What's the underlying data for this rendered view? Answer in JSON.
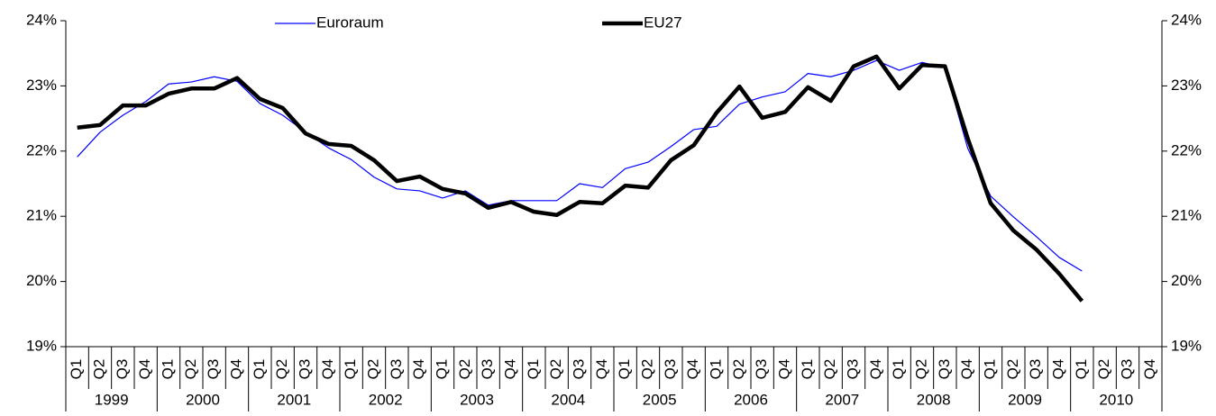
{
  "chart_data": {
    "type": "line",
    "categories": [
      "Q1",
      "Q2",
      "Q3",
      "Q4",
      "Q1",
      "Q2",
      "Q3",
      "Q4",
      "Q1",
      "Q2",
      "Q3",
      "Q4",
      "Q1",
      "Q2",
      "Q3",
      "Q4",
      "Q1",
      "Q2",
      "Q3",
      "Q4",
      "Q1",
      "Q2",
      "Q3",
      "Q4",
      "Q1",
      "Q2",
      "Q3",
      "Q4",
      "Q1",
      "Q2",
      "Q3",
      "Q4",
      "Q1",
      "Q2",
      "Q3",
      "Q4",
      "Q1",
      "Q2",
      "Q3",
      "Q4",
      "Q1",
      "Q2",
      "Q3",
      "Q4",
      "Q1",
      "Q2",
      "Q3",
      "Q4"
    ],
    "groups": [
      "1999",
      "2000",
      "2001",
      "2002",
      "2003",
      "2004",
      "2005",
      "2006",
      "2007",
      "2008",
      "2009",
      "2010"
    ],
    "series": [
      {
        "name": "Euroraum",
        "color": "#0000ff",
        "values": [
          21.91,
          22.29,
          22.55,
          22.76,
          23.03,
          23.06,
          23.14,
          23.07,
          22.73,
          22.55,
          22.29,
          22.05,
          21.87,
          21.6,
          21.42,
          21.39,
          21.28,
          21.39,
          21.17,
          21.24,
          21.24,
          21.24,
          21.5,
          21.44,
          21.73,
          21.83,
          22.07,
          22.33,
          22.38,
          22.72,
          22.83,
          22.91,
          23.19,
          23.14,
          23.24,
          23.39,
          23.24,
          23.36,
          23.28,
          22.04,
          21.31,
          20.99,
          20.69,
          20.37,
          20.16,
          null,
          null,
          null
        ]
      },
      {
        "name": "EU27",
        "color": "#000000",
        "values": [
          22.36,
          22.4,
          22.7,
          22.7,
          22.88,
          22.96,
          22.96,
          23.12,
          22.8,
          22.66,
          22.27,
          22.11,
          22.08,
          21.86,
          21.54,
          21.61,
          21.42,
          21.35,
          21.13,
          21.22,
          21.07,
          21.02,
          21.22,
          21.2,
          21.47,
          21.44,
          21.86,
          22.09,
          22.59,
          22.99,
          22.51,
          22.6,
          22.98,
          22.77,
          23.3,
          23.45,
          22.96,
          23.32,
          23.3,
          22.19,
          21.2,
          20.78,
          20.49,
          20.12,
          19.7,
          null,
          null,
          null
        ]
      }
    ],
    "ylim": [
      19,
      24
    ],
    "yticks": [
      {
        "value": 19,
        "label": "19%"
      },
      {
        "value": 20,
        "label": "20%"
      },
      {
        "value": 21,
        "label": "21%"
      },
      {
        "value": 22,
        "label": "22%"
      },
      {
        "value": 23,
        "label": "23%"
      },
      {
        "value": 24,
        "label": "24%"
      }
    ],
    "y2lim": [
      19,
      24
    ],
    "y2ticks": [
      {
        "value": 19,
        "label": "19%"
      },
      {
        "value": 20,
        "label": "20%"
      },
      {
        "value": 21,
        "label": "21%"
      },
      {
        "value": 22,
        "label": "22%"
      },
      {
        "value": 23,
        "label": "23%"
      },
      {
        "value": 24,
        "label": "24%"
      }
    ],
    "grid": false,
    "legend": "top"
  }
}
